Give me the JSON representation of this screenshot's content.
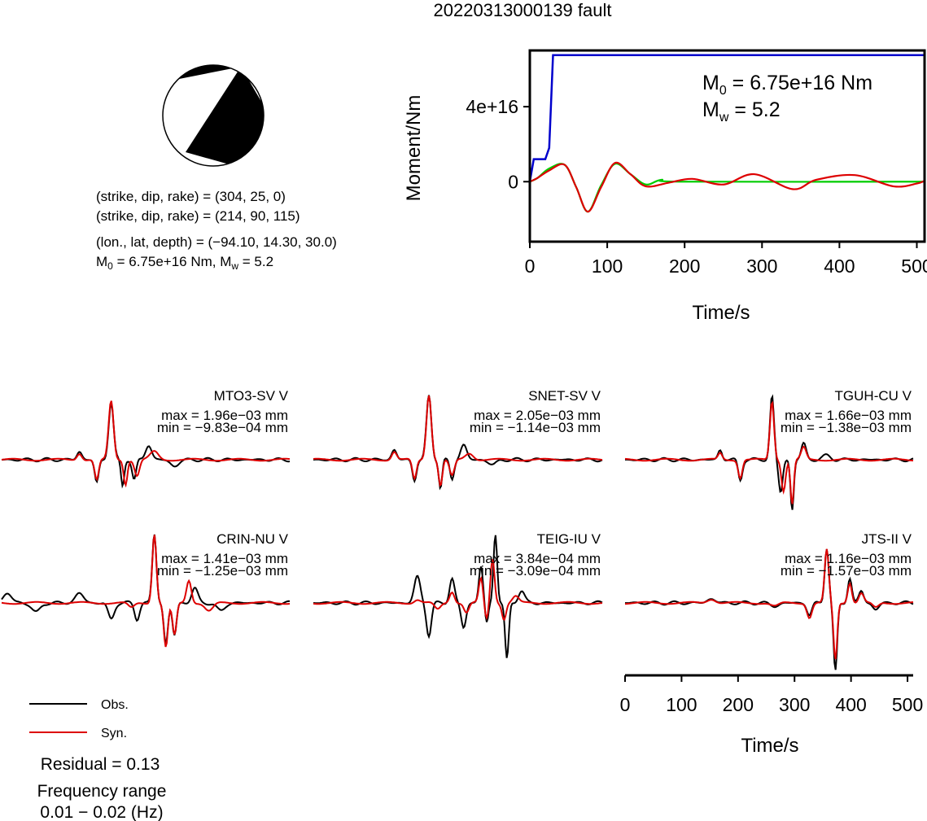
{
  "title": "20220313000139 fault",
  "mechanism": {
    "line1": "(strike, dip, rake) = (304, 25, 0)",
    "line2": "(strike, dip, rake) = (214, 90, 115)",
    "line3": "(lon., lat, depth) = (−94.10, 14.30, 30.0)",
    "m0_sym": "M",
    "m0_sub": "0",
    "m0_rest": " = 6.75e+16 Nm, M",
    "mw_sub": "w",
    "mw_rest": " = 5.2"
  },
  "moment_panel": {
    "ylabel": "Moment/Nm",
    "xlabel": "Time/s",
    "ann_m0_pre": "M",
    "ann_m0_sub": "0",
    "ann_m0_rest": " = 6.75e+16 Nm",
    "ann_mw_pre": "M",
    "ann_mw_sub": "w",
    "ann_mw_rest": " = 5.2"
  },
  "legend": {
    "obs": "Obs.",
    "syn": "Syn."
  },
  "footer": {
    "residual": "Residual = 0.13",
    "freq_label": "Frequency range",
    "freq_value": "0.01 − 0.02 (Hz)"
  },
  "stations": [
    {
      "name": "MTO3-SV V",
      "max": "max = 1.96e−03 mm",
      "min": "min = −9.83e−04 mm"
    },
    {
      "name": "SNET-SV V",
      "max": "max = 2.05e−03 mm",
      "min": "min = −1.14e−03 mm"
    },
    {
      "name": "TGUH-CU V",
      "max": "max = 1.66e−03 mm",
      "min": "min = −1.38e−03 mm"
    },
    {
      "name": "CRIN-NU V",
      "max": "max = 1.41e−03 mm",
      "min": "min = −1.25e−03 mm"
    },
    {
      "name": "TEIG-IU V",
      "max": "max = 3.84e−04 mm",
      "min": "min = −3.09e−04 mm"
    },
    {
      "name": "JTS-II V",
      "max": "max = 1.16e−03 mm",
      "min": "min = −1.57e−03 mm"
    }
  ],
  "chart_data": [
    {
      "type": "line",
      "xlabel": "Time/s",
      "ylabel": "Moment/Nm",
      "xlim": [
        0,
        510
      ],
      "ylim": [
        -3.2e+16,
        7e+16
      ],
      "xticks": [
        0,
        100,
        200,
        300,
        400,
        500
      ],
      "yticks": [
        {
          "value": 0,
          "label": "0"
        },
        {
          "value": 4e+16,
          "label": "4e+16"
        }
      ],
      "series": [
        {
          "color": "#0000cc",
          "x": [
            0,
            5,
            10,
            20,
            25,
            30,
            510
          ],
          "y": [
            0,
            1.2e+16,
            1.2e+16,
            1.2e+16,
            1.8e+16,
            6.75e+16,
            6.75e+16
          ]
        },
        {
          "color": "#00cc00",
          "x": [
            0,
            10,
            25,
            45,
            60,
            75,
            92,
            110,
            130,
            150,
            170,
            200,
            510
          ],
          "y": [
            0,
            2000000000000000.0,
            7000000000000000.0,
            9000000000000000.0,
            -3000000000000000.0,
            -1.6e+16,
            -2000000000000000.0,
            9500000000000000.0,
            4000000000000000.0,
            -1500000000000000.0,
            1000000000000000.0,
            0,
            0
          ]
        },
        {
          "color": "#dd0000",
          "x": [
            0,
            10,
            25,
            45,
            60,
            75,
            92,
            110,
            130,
            150,
            180,
            210,
            250,
            290,
            340,
            370,
            420,
            470,
            500,
            510
          ],
          "y": [
            0,
            2000000000000000.0,
            6000000000000000.0,
            9000000000000000.0,
            -3000000000000000.0,
            -1.6e+16,
            -3000000000000000.0,
            1e+16,
            4000000000000000.0,
            -2500000000000000.0,
            -500000000000000.0,
            1500000000000000.0,
            -1500000000000000.0,
            4000000000000000.0,
            -4000000000000000.0,
            1000000000000000.0,
            3500000000000000.0,
            -2500000000000000.0,
            -1000000000000000.0,
            500000000000000.0
          ]
        }
      ]
    },
    {
      "type": "line",
      "xlabel": "Time/s",
      "xlim": [
        0,
        510
      ],
      "xticks": [
        0,
        100,
        200,
        300,
        400,
        500
      ]
    }
  ]
}
